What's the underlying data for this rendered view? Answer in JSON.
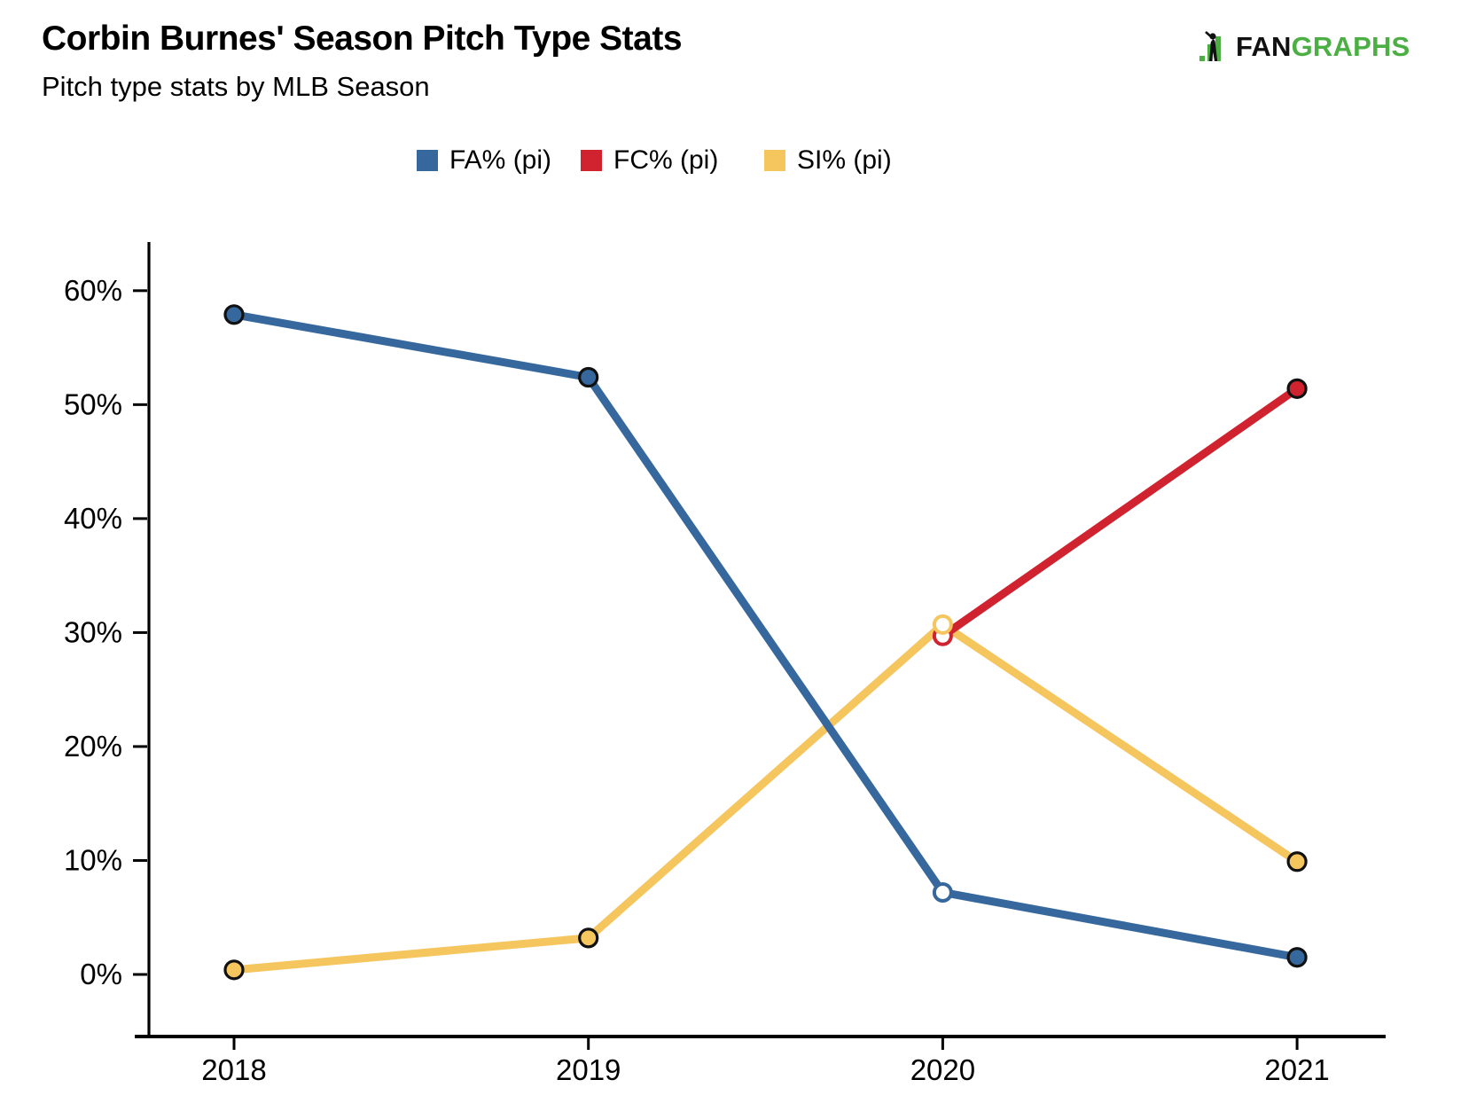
{
  "header": {
    "title": "Corbin Burnes' Season Pitch Type Stats",
    "subtitle": "Pitch type stats by MLB Season"
  },
  "logo": {
    "fan": "FAN",
    "graphs": "GRAPHS",
    "green": "#4caf43",
    "black": "#111111"
  },
  "chart_data": {
    "type": "line",
    "title": "Corbin Burnes' Season Pitch Type Stats",
    "subtitle": "Pitch type stats by MLB Season",
    "categories": [
      "2018",
      "2019",
      "2020",
      "2021"
    ],
    "series": [
      {
        "name": "FA% (pi)",
        "color": "#36689d",
        "values": [
          57.9,
          52.4,
          7.2,
          1.5
        ]
      },
      {
        "name": "FC% (pi)",
        "color": "#d0232f",
        "values": [
          null,
          null,
          29.7,
          51.4
        ]
      },
      {
        "name": "SI% (pi)",
        "color": "#f5c55e",
        "values": [
          0.4,
          3.2,
          30.7,
          9.9
        ]
      }
    ],
    "hollow_marker_category": "2020",
    "yticks": [
      0,
      10,
      20,
      30,
      40,
      50,
      60
    ],
    "ytick_labels": [
      "0%",
      "10%",
      "20%",
      "30%",
      "40%",
      "50%",
      "60%"
    ],
    "ylim": [
      -5,
      64
    ],
    "xlabel": "",
    "ylabel": "",
    "grid": false,
    "legend_position": "top",
    "axis_color": "#000000",
    "marker_outline_color": "#111111"
  }
}
